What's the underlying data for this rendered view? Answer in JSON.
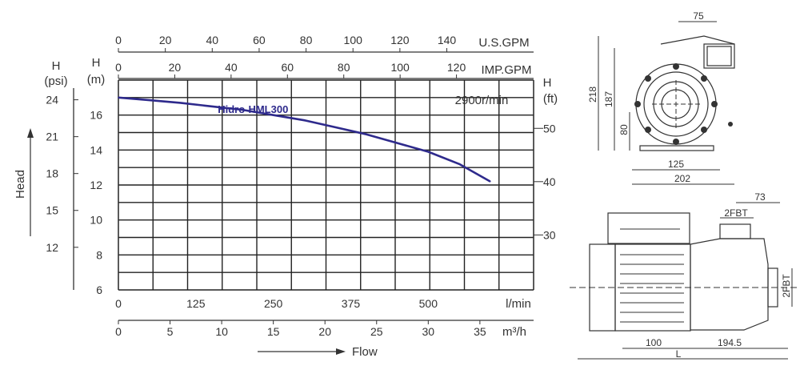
{
  "chart_data": {
    "type": "line",
    "series": [
      {
        "name": "Hidro-HML300",
        "flow_lmin": [
          0,
          50,
          100,
          150,
          200,
          250,
          300,
          350,
          400,
          450,
          500,
          550,
          600
        ],
        "head_m": [
          17.0,
          16.85,
          16.7,
          16.5,
          16.3,
          16.0,
          15.7,
          15.3,
          14.9,
          14.4,
          13.9,
          13.2,
          12.2
        ]
      }
    ],
    "speed_label": "2900r/min",
    "axes": {
      "x_lmin": {
        "label": "l/min",
        "ticks": [
          "0",
          "125",
          "250",
          "375",
          "500"
        ],
        "range": [
          0,
          670
        ]
      },
      "x_m3h": {
        "label": "m³/h",
        "ticks": [
          "0",
          "5",
          "10",
          "15",
          "20",
          "25",
          "30",
          "35"
        ]
      },
      "x_usgpm": {
        "label": "U.S.GPM",
        "ticks": [
          "0",
          "20",
          "40",
          "60",
          "80",
          "100",
          "120",
          "140"
        ]
      },
      "x_impgpm": {
        "label": "IMP.GPM",
        "ticks": [
          "0",
          "20",
          "40",
          "60",
          "80",
          "100",
          "120"
        ]
      },
      "y_m": {
        "label_top": "H",
        "label_unit": "(m)",
        "ticks": [
          "6",
          "8",
          "10",
          "12",
          "14",
          "16"
        ],
        "range": [
          6,
          18
        ]
      },
      "y_psi": {
        "label_top": "H",
        "label_unit": "(psi)",
        "ticks": [
          "12",
          "15",
          "18",
          "21",
          "24"
        ]
      },
      "y_ft": {
        "label_top": "H",
        "label_unit": "(ft)",
        "ticks": [
          "30",
          "40",
          "50"
        ]
      }
    },
    "flow_label": "Flow",
    "head_label": "Head",
    "grid": true,
    "line_color": "#2e2a8c"
  },
  "drawings": {
    "front_view": {
      "dims": [
        "75",
        "218",
        "187",
        "80",
        "125",
        "202"
      ]
    },
    "side_view": {
      "dims": [
        "73",
        "2FBT",
        "2FBT",
        "100",
        "194.5",
        "L"
      ]
    }
  }
}
